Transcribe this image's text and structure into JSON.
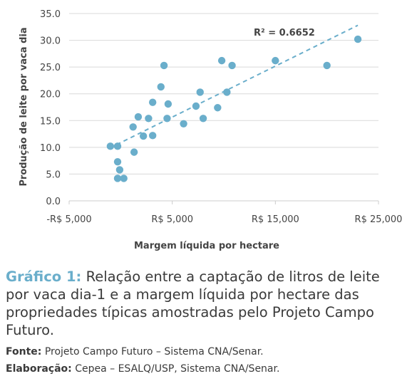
{
  "colors": {
    "point": "#6aaecb",
    "trendline": "#6aaecb",
    "grid": "#d9d9d9",
    "axis": "#cccccc",
    "text": "#444444",
    "caption_accent": "#6aaecb"
  },
  "chart_data": {
    "type": "scatter",
    "xlabel": "Margem líquida por hectare",
    "ylabel": "Produção de leite por vaca dia",
    "xlim": [
      -5000,
      25000
    ],
    "ylim": [
      0,
      35
    ],
    "x_ticks": [
      {
        "value": -5000,
        "label": "-R$ 5,000"
      },
      {
        "value": 5000,
        "label": "R$ 5,000"
      },
      {
        "value": 15000,
        "label": "R$ 15,000"
      },
      {
        "value": 25000,
        "label": "R$ 25,000"
      }
    ],
    "y_ticks": [
      {
        "value": 0,
        "label": "0.0"
      },
      {
        "value": 5,
        "label": "5.0"
      },
      {
        "value": 10,
        "label": "10.0"
      },
      {
        "value": 15,
        "label": "15.0"
      },
      {
        "value": 20,
        "label": "20.0"
      },
      {
        "value": 25,
        "label": "25.0"
      },
      {
        "value": 30,
        "label": "30.0"
      },
      {
        "value": 35,
        "label": "35.0"
      }
    ],
    "grid": "horizontal",
    "legend": "none",
    "annotation": "R² = 0.6652",
    "trendline": {
      "x": [
        -400,
        23000
      ],
      "y": [
        10.5,
        32.8
      ],
      "style": "dashed"
    },
    "points": [
      {
        "x": -1000,
        "y": 10.2
      },
      {
        "x": -300,
        "y": 10.2
      },
      {
        "x": -300,
        "y": 7.3
      },
      {
        "x": -100,
        "y": 5.8
      },
      {
        "x": -300,
        "y": 4.2
      },
      {
        "x": 300,
        "y": 4.2
      },
      {
        "x": 1300,
        "y": 9.1
      },
      {
        "x": 1200,
        "y": 13.8
      },
      {
        "x": 1700,
        "y": 15.7
      },
      {
        "x": 2200,
        "y": 12.1
      },
      {
        "x": 2700,
        "y": 15.4
      },
      {
        "x": 3100,
        "y": 12.2
      },
      {
        "x": 3100,
        "y": 18.4
      },
      {
        "x": 3900,
        "y": 21.3
      },
      {
        "x": 4200,
        "y": 25.3
      },
      {
        "x": 4500,
        "y": 15.4
      },
      {
        "x": 4600,
        "y": 18.1
      },
      {
        "x": 6100,
        "y": 14.4
      },
      {
        "x": 7300,
        "y": 17.7
      },
      {
        "x": 7700,
        "y": 20.3
      },
      {
        "x": 8000,
        "y": 15.4
      },
      {
        "x": 9400,
        "y": 17.4
      },
      {
        "x": 9800,
        "y": 26.2
      },
      {
        "x": 10300,
        "y": 20.3
      },
      {
        "x": 10800,
        "y": 25.3
      },
      {
        "x": 15000,
        "y": 26.2
      },
      {
        "x": 20000,
        "y": 25.3
      },
      {
        "x": 23000,
        "y": 30.2
      }
    ]
  },
  "caption": {
    "label": "Gráfico 1:",
    "text": "Relação entre a captação de litros de leite por vaca dia-1 e a margem líquida por hectare das propriedades típicas amostradas pelo Projeto Campo Futuro.",
    "source_label": "Fonte:",
    "source_text": "Projeto Campo Futuro – Sistema CNA/Senar.",
    "elaboration_label": "Elaboração:",
    "elaboration_text": "Cepea – ESALQ/USP, Sistema CNA/Senar."
  }
}
